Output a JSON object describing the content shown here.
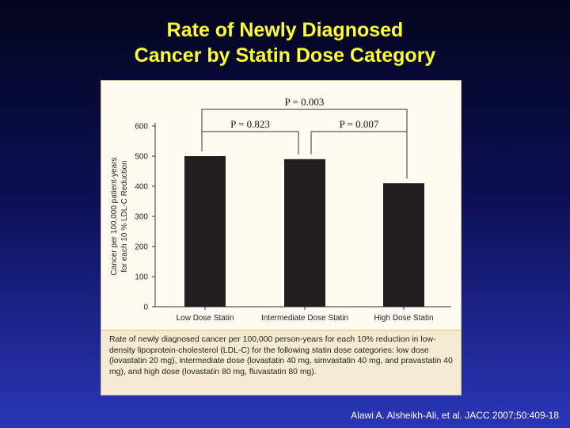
{
  "slide": {
    "title_line1": "Rate of Newly Diagnosed",
    "title_line2": "Cancer by Statin Dose Category",
    "caption": "Rate of newly diagnosed cancer per 100,000 person-years for each 10% reduction in low-density lipoprotein-cholesterol (LDL-C) for the following statin dose categories: low dose (lovastatin 20 mg), intermediate dose (lovastatin 40 mg, simvastatin 40 mg, and pravastatin 40 mg), and high dose (lovastatin 80 mg, fluvastatin 80 mg).",
    "citation": "Alawi A. Alsheikh-Ali, et al. JACC 2007;50:409-18"
  },
  "colors": {
    "title": "#ffff33",
    "bar": "#231f20",
    "bracket": "#333333"
  },
  "chart_data": {
    "type": "bar",
    "categories": [
      "Low Dose Statin",
      "Intermediate Dose Statin",
      "High Dose Statin"
    ],
    "values": [
      500,
      490,
      410
    ],
    "ylabel_line1": "Cancer per 100,000 patient-years",
    "ylabel_line2": "for each 10 % LDL-C Reduction",
    "ylim": [
      0,
      600
    ],
    "yticks": [
      0,
      100,
      200,
      300,
      400,
      500,
      600
    ],
    "grid": false,
    "annotations": [
      {
        "label": "P = 0.003",
        "from": 0,
        "to": 2,
        "level": 2
      },
      {
        "label": "P = 0.823",
        "from": 0,
        "to": 1,
        "level": 1
      },
      {
        "label": "P = 0.007",
        "from": 1,
        "to": 2,
        "level": 1
      }
    ]
  }
}
